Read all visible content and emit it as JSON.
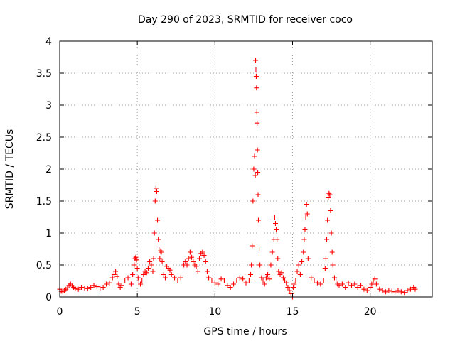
{
  "chart_data": {
    "type": "scatter",
    "title": "Day 290 of 2023, SRMTID for receiver coco",
    "xlabel": "GPS time / hours",
    "ylabel": "SRMTID / TECUs",
    "xlim": [
      0,
      24
    ],
    "ylim": [
      0,
      4
    ],
    "xticks": [
      0,
      5,
      10,
      15,
      20
    ],
    "xtick_labels": [
      "0",
      "5",
      "10",
      "15",
      "20"
    ],
    "yticks": [
      0,
      0.5,
      1,
      1.5,
      2,
      2.5,
      3,
      3.5,
      4
    ],
    "ytick_labels": [
      "0",
      "0.5",
      "1",
      "1.5",
      "2",
      "2.5",
      "3",
      "3.5",
      "4"
    ],
    "grid": true,
    "marker": "+",
    "color": "#ff0000",
    "series": [
      {
        "name": "SRMTID",
        "x": [
          0.0,
          0.1,
          0.2,
          0.3,
          0.4,
          0.5,
          0.6,
          0.7,
          0.8,
          0.9,
          1.0,
          1.2,
          1.4,
          1.6,
          1.8,
          2.0,
          2.2,
          2.4,
          2.6,
          2.8,
          3.0,
          3.2,
          3.4,
          3.5,
          3.6,
          3.7,
          3.8,
          3.9,
          4.0,
          4.2,
          4.4,
          4.6,
          4.7,
          4.8,
          4.85,
          4.9,
          4.95,
          5.0,
          5.05,
          5.1,
          5.2,
          5.3,
          5.4,
          5.5,
          5.6,
          5.7,
          5.8,
          5.9,
          6.0,
          6.05,
          6.1,
          6.15,
          6.2,
          6.25,
          6.3,
          6.35,
          6.4,
          6.45,
          6.5,
          6.55,
          6.6,
          6.7,
          6.8,
          6.9,
          7.0,
          7.1,
          7.2,
          7.4,
          7.6,
          7.8,
          8.0,
          8.1,
          8.2,
          8.3,
          8.4,
          8.5,
          8.6,
          8.7,
          8.8,
          8.9,
          9.0,
          9.1,
          9.2,
          9.3,
          9.4,
          9.5,
          9.6,
          9.8,
          10.0,
          10.2,
          10.4,
          10.6,
          10.8,
          11.0,
          11.2,
          11.4,
          11.6,
          11.8,
          12.0,
          12.2,
          12.3,
          12.35,
          12.4,
          12.45,
          12.5,
          12.55,
          12.6,
          12.62,
          12.64,
          12.66,
          12.68,
          12.7,
          12.72,
          12.74,
          12.76,
          12.78,
          12.8,
          12.85,
          12.9,
          13.0,
          13.1,
          13.2,
          13.3,
          13.4,
          13.5,
          13.6,
          13.7,
          13.8,
          13.85,
          13.9,
          13.95,
          14.0,
          14.05,
          14.1,
          14.2,
          14.3,
          14.4,
          14.5,
          14.6,
          14.7,
          14.8,
          14.9,
          15.0,
          15.05,
          15.1,
          15.2,
          15.3,
          15.4,
          15.5,
          15.6,
          15.7,
          15.75,
          15.8,
          15.85,
          15.9,
          15.95,
          16.0,
          16.2,
          16.4,
          16.6,
          16.8,
          17.0,
          17.1,
          17.15,
          17.2,
          17.25,
          17.3,
          17.35,
          17.4,
          17.45,
          17.5,
          17.55,
          17.6,
          17.7,
          17.8,
          17.9,
          18.0,
          18.2,
          18.4,
          18.6,
          18.8,
          19.0,
          19.2,
          19.4,
          19.6,
          19.8,
          20.0,
          20.1,
          20.2,
          20.3,
          20.4,
          20.6,
          20.8,
          21.0,
          21.2,
          21.4,
          21.6,
          21.8,
          22.0,
          22.2,
          22.4,
          22.6,
          22.8,
          22.9
        ],
        "values": [
          0.12,
          0.09,
          0.08,
          0.1,
          0.12,
          0.14,
          0.18,
          0.2,
          0.17,
          0.15,
          0.13,
          0.12,
          0.15,
          0.14,
          0.13,
          0.15,
          0.18,
          0.16,
          0.14,
          0.15,
          0.2,
          0.22,
          0.3,
          0.35,
          0.4,
          0.32,
          0.2,
          0.15,
          0.18,
          0.25,
          0.3,
          0.2,
          0.35,
          0.5,
          0.6,
          0.62,
          0.58,
          0.45,
          0.3,
          0.25,
          0.2,
          0.25,
          0.35,
          0.4,
          0.38,
          0.45,
          0.55,
          0.5,
          0.4,
          0.6,
          1.0,
          1.5,
          1.7,
          1.65,
          1.2,
          0.9,
          0.75,
          0.6,
          0.72,
          0.7,
          0.55,
          0.35,
          0.3,
          0.48,
          0.45,
          0.42,
          0.35,
          0.3,
          0.25,
          0.3,
          0.5,
          0.55,
          0.5,
          0.6,
          0.7,
          0.62,
          0.55,
          0.5,
          0.48,
          0.4,
          0.6,
          0.68,
          0.7,
          0.65,
          0.55,
          0.4,
          0.3,
          0.25,
          0.22,
          0.2,
          0.28,
          0.25,
          0.18,
          0.15,
          0.2,
          0.25,
          0.3,
          0.28,
          0.22,
          0.25,
          0.35,
          0.5,
          0.8,
          1.5,
          2.0,
          2.2,
          1.9,
          3.7,
          3.55,
          3.45,
          3.27,
          2.89,
          2.72,
          2.3,
          1.95,
          1.6,
          1.2,
          0.75,
          0.5,
          0.3,
          0.25,
          0.2,
          0.3,
          0.35,
          0.28,
          0.5,
          0.7,
          0.9,
          1.25,
          1.15,
          1.05,
          0.9,
          0.6,
          0.4,
          0.35,
          0.38,
          0.3,
          0.25,
          0.22,
          0.15,
          0.1,
          0.05,
          0.0,
          0.15,
          0.2,
          0.25,
          0.4,
          0.5,
          0.35,
          0.55,
          0.7,
          0.9,
          1.05,
          1.25,
          1.45,
          1.3,
          0.6,
          0.3,
          0.25,
          0.22,
          0.2,
          0.25,
          0.45,
          0.6,
          0.9,
          1.2,
          1.55,
          1.62,
          1.6,
          1.35,
          1.0,
          0.7,
          0.5,
          0.3,
          0.25,
          0.2,
          0.18,
          0.2,
          0.15,
          0.22,
          0.18,
          0.2,
          0.15,
          0.18,
          0.12,
          0.1,
          0.15,
          0.2,
          0.25,
          0.28,
          0.2,
          0.12,
          0.1,
          0.08,
          0.1,
          0.09,
          0.08,
          0.1,
          0.08,
          0.07,
          0.1,
          0.12,
          0.15,
          0.12
        ]
      }
    ]
  }
}
